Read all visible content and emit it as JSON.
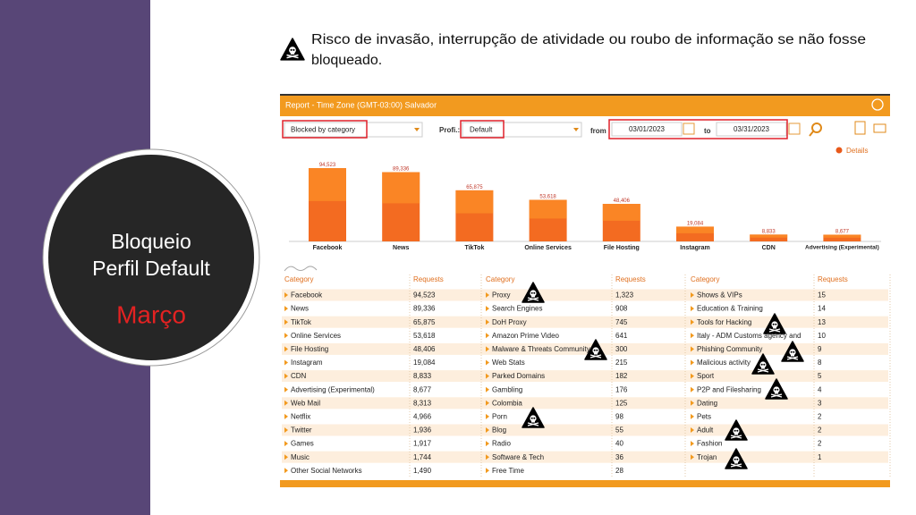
{
  "slide": {
    "notice_lines": [
      "Risco de invasão, interrupção de atividade ou roubo de informação se não fosse",
      "bloqueado."
    ],
    "circle_lines": [
      "Bloqueio",
      "Perfil Default"
    ],
    "month": "Março"
  },
  "report": {
    "title": "Report - Time Zone (GMT-03:00) Salvador",
    "filter": "Blocked by category",
    "profile_label": "Profi.:",
    "profile": "Default",
    "from_label": "from",
    "from_date": "03/01/2023",
    "to_label": "to",
    "to_date": "03/31/2023",
    "details": "Details"
  },
  "chart_data": {
    "type": "bar",
    "color": "#f36b21",
    "categories": [
      "Facebook",
      "News",
      "TikTok",
      "Online Services",
      "File Hosting",
      "Instagram",
      "CDN",
      "Advertising (Experimental)"
    ],
    "values": [
      94523,
      89336,
      65875,
      53618,
      48406,
      19084,
      8833,
      8677
    ],
    "value_labels": [
      "94,523",
      "89,336",
      "65,875",
      "53,618",
      "48,406",
      "19,084",
      "8,833",
      "8,677"
    ]
  },
  "table": {
    "groups": [
      {
        "headers": [
          "Category",
          "Requests"
        ],
        "rows": [
          [
            "Facebook",
            "94,523"
          ],
          [
            "News",
            "89,336"
          ],
          [
            "TikTok",
            "65,875"
          ],
          [
            "Online Services",
            "53,618"
          ],
          [
            "File Hosting",
            "48,406"
          ],
          [
            "Instagram",
            "19,084"
          ],
          [
            "CDN",
            "8,833"
          ],
          [
            "Advertising (Experimental)",
            "8,677"
          ],
          [
            "Web Mail",
            "8,313"
          ],
          [
            "Netflix",
            "4,966"
          ],
          [
            "Twitter",
            "1,936"
          ],
          [
            "Games",
            "1,917"
          ],
          [
            "Music",
            "1,744"
          ],
          [
            "Other Social Networks",
            "1,490"
          ]
        ]
      },
      {
        "headers": [
          "Category",
          "Requests"
        ],
        "rows": [
          [
            "Proxy",
            "1,323"
          ],
          [
            "Search Engines",
            "908"
          ],
          [
            "DoH Proxy",
            "745"
          ],
          [
            "Amazon Prime Video",
            "641"
          ],
          [
            "Malware & Threats Community",
            "300"
          ],
          [
            "Web Stats",
            "215"
          ],
          [
            "Parked Domains",
            "182"
          ],
          [
            "Gambling",
            "176"
          ],
          [
            "Colombia",
            "125"
          ],
          [
            "Porn",
            "98"
          ],
          [
            "Blog",
            "55"
          ],
          [
            "Radio",
            "40"
          ],
          [
            "Software & Tech",
            "36"
          ],
          [
            "Free Time",
            "28"
          ]
        ]
      },
      {
        "headers": [
          "Category",
          "Requests"
        ],
        "rows": [
          [
            "Shows & VIPs",
            "15"
          ],
          [
            "Education & Training",
            "14"
          ],
          [
            "Tools for Hacking",
            "13"
          ],
          [
            "Italy - ADM Customs agency and",
            "10"
          ],
          [
            "Phishing Community",
            "9"
          ],
          [
            "Malicious activity",
            "8"
          ],
          [
            "Sport",
            "5"
          ],
          [
            "P2P and Filesharing",
            "4"
          ],
          [
            "Dating",
            "3"
          ],
          [
            "Pets",
            "2"
          ],
          [
            "Adult",
            "2"
          ],
          [
            "Fashion",
            "2"
          ],
          [
            "Trojan",
            "1"
          ]
        ]
      }
    ]
  }
}
